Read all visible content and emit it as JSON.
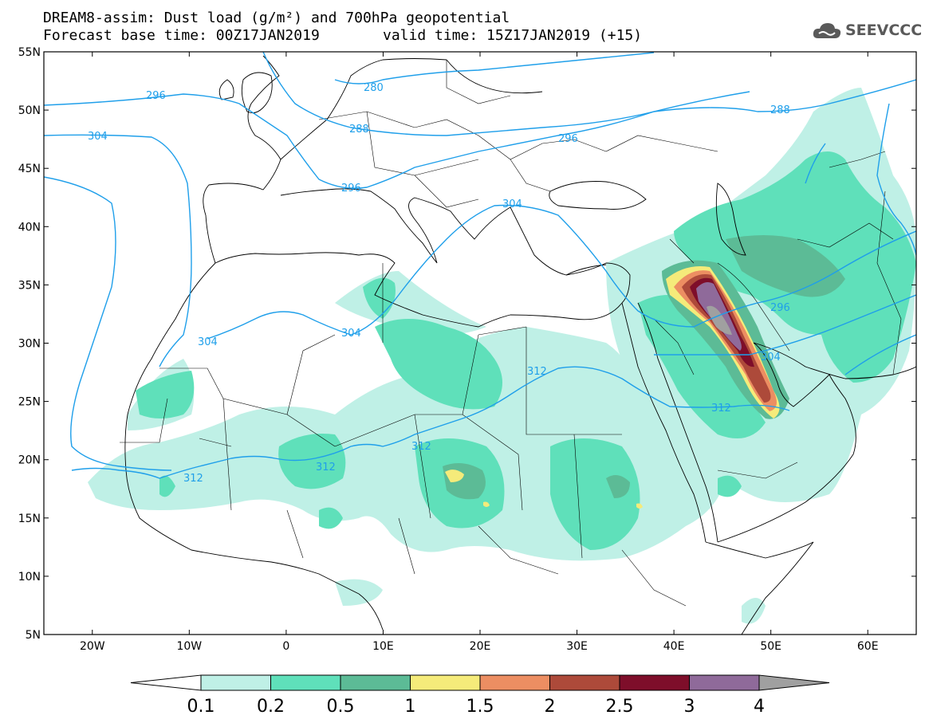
{
  "header": {
    "title_line1": "DREAM8-assim: Dust load (g/m²) and 700hPa geopotential",
    "base_label": "Forecast base time: 00Z17JAN2019",
    "valid_label": "valid time: 15Z17JAN2019 (+15)"
  },
  "logo": {
    "text": "SEEVCCC",
    "icon": "cloud-icon"
  },
  "map": {
    "lat_labels": [
      "55N",
      "50N",
      "45N",
      "40N",
      "35N",
      "30N",
      "25N",
      "20N",
      "15N",
      "10N",
      "5N"
    ],
    "lon_labels": [
      "20W",
      "10W",
      "0",
      "10E",
      "20E",
      "30E",
      "40E",
      "50E",
      "60E"
    ],
    "lon_range": [
      -25,
      65
    ],
    "lat_range": [
      5,
      55
    ],
    "contours": [
      {
        "label": "296"
      },
      {
        "label": "280"
      },
      {
        "label": "288"
      },
      {
        "label": "304"
      },
      {
        "label": "288"
      },
      {
        "label": "296"
      },
      {
        "label": "296"
      },
      {
        "label": "304"
      },
      {
        "label": "304"
      },
      {
        "label": "304"
      },
      {
        "label": "296"
      },
      {
        "label": "304"
      },
      {
        "label": "312"
      },
      {
        "label": "312"
      },
      {
        "label": "312"
      },
      {
        "label": "312"
      },
      {
        "label": "312"
      }
    ]
  },
  "colorbar": {
    "labels": [
      "0.1",
      "0.2",
      "0.5",
      "1",
      "1.5",
      "2",
      "2.5",
      "3",
      "4"
    ],
    "colors": [
      "#bff0e6",
      "#5fe0ba",
      "#5cbb96",
      "#f5eb7a",
      "#ec8e62",
      "#ad4a3a",
      "#7e0e2a",
      "#8f6a9a",
      "#a0a0a0"
    ]
  }
}
